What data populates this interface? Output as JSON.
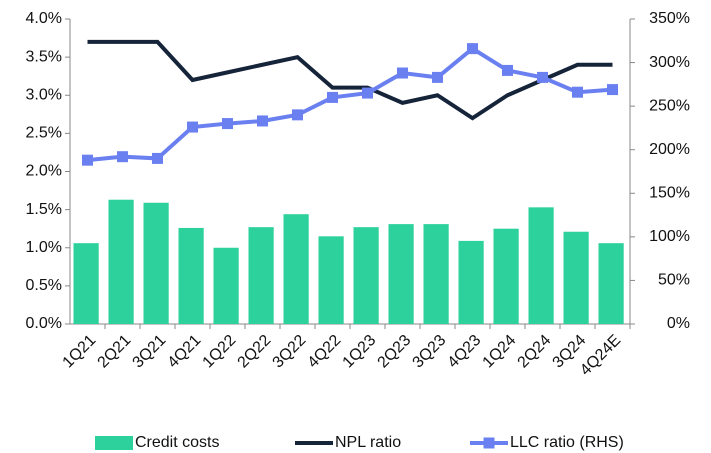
{
  "chart_data": {
    "type": "bar-line",
    "categories": [
      "1Q21",
      "2Q21",
      "3Q21",
      "4Q21",
      "1Q22",
      "2Q22",
      "3Q22",
      "4Q22",
      "1Q23",
      "2Q23",
      "3Q23",
      "4Q23",
      "1Q24",
      "2Q24",
      "3Q24",
      "4Q24E"
    ],
    "series": [
      {
        "name": "Credit costs",
        "type": "bar",
        "color": "#2dd19b",
        "values": [
          1.06,
          1.63,
          1.59,
          1.26,
          1.0,
          1.27,
          1.44,
          1.15,
          1.27,
          1.31,
          1.31,
          1.09,
          1.25,
          1.53,
          1.21,
          1.06
        ]
      },
      {
        "name": "NPL ratio",
        "type": "line",
        "color": "#16243a",
        "values": [
          3.7,
          3.7,
          3.7,
          3.2,
          3.3,
          3.4,
          3.5,
          3.1,
          3.1,
          2.9,
          3.0,
          2.7,
          3.0,
          3.2,
          3.4,
          3.4
        ]
      },
      {
        "name": "LLC ratio (RHS)",
        "type": "line",
        "marker": "square",
        "axis": "y2",
        "color": "#6a80f0",
        "values": [
          188,
          192,
          190,
          226,
          230,
          233,
          240,
          260,
          265,
          288,
          283,
          316,
          291,
          283,
          266,
          269
        ]
      }
    ],
    "ylim": [
      0,
      4.0
    ],
    "yticks": [
      {
        "value": 0,
        "label": "0.0%"
      },
      {
        "value": 0.5,
        "label": "0.5%"
      },
      {
        "value": 1.0,
        "label": "1.0%"
      },
      {
        "value": 1.5,
        "label": "1.5%"
      },
      {
        "value": 2.0,
        "label": "2.0%"
      },
      {
        "value": 2.5,
        "label": "2.5%"
      },
      {
        "value": 3.0,
        "label": "3.0%"
      },
      {
        "value": 3.5,
        "label": "3.5%"
      },
      {
        "value": 4.0,
        "label": "4.0%"
      }
    ],
    "y2lim": [
      0,
      350
    ],
    "y2ticks": [
      {
        "value": 0,
        "label": "0%"
      },
      {
        "value": 50,
        "label": "50%"
      },
      {
        "value": 100,
        "label": "100%"
      },
      {
        "value": 150,
        "label": "150%"
      },
      {
        "value": 200,
        "label": "200%"
      },
      {
        "value": 250,
        "label": "250%"
      },
      {
        "value": 300,
        "label": "300%"
      },
      {
        "value": 350,
        "label": "350%"
      }
    ],
    "legend": "bottom"
  }
}
